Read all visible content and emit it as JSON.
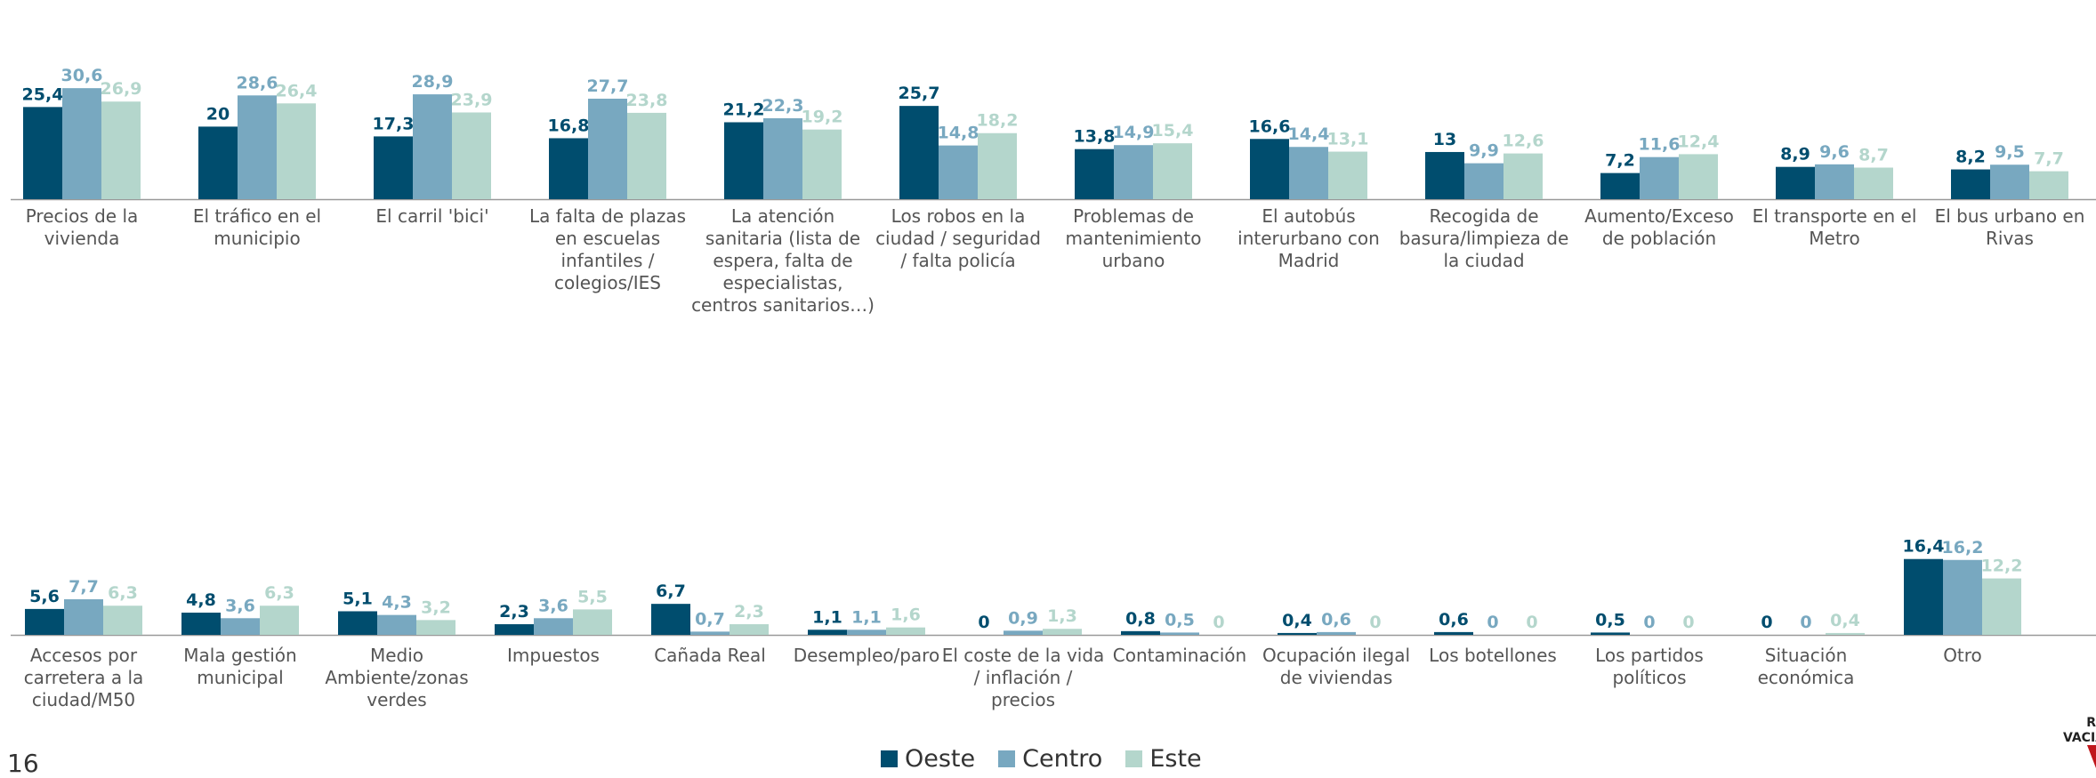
{
  "page_number": "16",
  "colors": {
    "Oeste": "#004d6e",
    "Centro": "#78a8c0",
    "Este": "#b4d6cc",
    "axis": "#999999",
    "label": "#555555"
  },
  "chart_data": [
    {
      "type": "bar",
      "categories": [
        "Precios de la vivienda",
        "El tráfico en el municipio",
        "El carril 'bici'",
        "La falta de plazas en escuelas infantiles / colegios/IES",
        "La atención sanitaria (lista de espera, falta de especialistas, centros sanitarios…)",
        "Los robos en la ciudad / seguridad / falta policía",
        "Problemas de mantenimiento urbano",
        "El autobús interurbano con Madrid",
        "Recogida de basura/limpieza de la ciudad",
        "Aumento/Exceso de población",
        "El transporte en el Metro",
        "El bus urbano en Rivas"
      ],
      "category_lines": [
        [
          "Precios de la",
          "vivienda"
        ],
        [
          "El tráfico en el",
          "municipio"
        ],
        [
          "El carril 'bici'"
        ],
        [
          "La falta de plazas",
          "en escuelas",
          "infantiles /",
          "colegios/IES"
        ],
        [
          "La atención",
          "sanitaria (lista de",
          "espera, falta de",
          "especialistas,",
          "centros sanitarios…)"
        ],
        [
          "Los robos en la",
          "ciudad / seguridad",
          "/ falta policía"
        ],
        [
          "Problemas de",
          "mantenimiento",
          "urbano"
        ],
        [
          "El autobús",
          "interurbano con",
          "Madrid"
        ],
        [
          "Recogida de",
          "basura/limpieza de",
          "la ciudad"
        ],
        [
          "Aumento/Exceso",
          "de población"
        ],
        [
          "El transporte en el",
          "Metro"
        ],
        [
          "El bus urbano en",
          "Rivas"
        ]
      ],
      "series": [
        {
          "name": "Oeste",
          "values": [
            25.4,
            20,
            17.3,
            16.8,
            21.2,
            25.7,
            13.8,
            16.6,
            13,
            7.2,
            8.9,
            8.2
          ],
          "labels": [
            "25,4",
            "20",
            "17,3",
            "16,8",
            "21,2",
            "25,7",
            "13,8",
            "16,6",
            "13",
            "7,2",
            "8,9",
            "8,2"
          ]
        },
        {
          "name": "Centro",
          "values": [
            30.6,
            28.6,
            28.9,
            27.7,
            22.3,
            14.8,
            14.9,
            14.4,
            9.9,
            11.6,
            9.6,
            9.5
          ],
          "labels": [
            "30,6",
            "28,6",
            "28,9",
            "27,7",
            "22,3",
            "14,8",
            "14,9",
            "14,4",
            "9,9",
            "11,6",
            "9,6",
            "9,5"
          ]
        },
        {
          "name": "Este",
          "values": [
            26.9,
            26.4,
            23.9,
            23.8,
            19.2,
            18.2,
            15.4,
            13.1,
            12.6,
            12.4,
            8.7,
            7.7
          ],
          "labels": [
            "26,9",
            "26,4",
            "23,9",
            "23,8",
            "19,2",
            "18,2",
            "15,4",
            "13,1",
            "12,6",
            "12,4",
            "8,7",
            "7,7"
          ]
        }
      ]
    },
    {
      "type": "bar",
      "categories": [
        "Accesos por carretera a la ciudad/M50",
        "Mala gestión municipal",
        "Medio Ambiente/zonas verdes",
        "Impuestos",
        "Cañada Real",
        "Desempleo/paro",
        "El coste de la vida / inflación / precios",
        "Contaminación",
        "Ocupación ilegal de viviendas",
        "Los botellones",
        "Los partidos políticos",
        "Situación económica",
        "Otro"
      ],
      "category_lines": [
        [
          "Accesos por",
          "carretera a la",
          "ciudad/M50"
        ],
        [
          "Mala gestión",
          "municipal"
        ],
        [
          "Medio",
          "Ambiente/zonas",
          "verdes"
        ],
        [
          "Impuestos"
        ],
        [
          "Cañada Real"
        ],
        [
          "Desempleo/paro"
        ],
        [
          "El coste de la vida",
          "/ inflación /",
          "precios"
        ],
        [
          "Contaminación"
        ],
        [
          "Ocupación ilegal",
          "de viviendas"
        ],
        [
          "Los botellones"
        ],
        [
          "Los partidos",
          "políticos"
        ],
        [
          "Situación",
          "económica"
        ],
        [
          "Otro"
        ]
      ],
      "series": [
        {
          "name": "Oeste",
          "values": [
            5.6,
            4.8,
            5.1,
            2.3,
            6.7,
            1.1,
            0,
            0.8,
            0.4,
            0.6,
            0.5,
            0,
            16.4
          ],
          "labels": [
            "5,6",
            "4,8",
            "5,1",
            "2,3",
            "6,7",
            "1,1",
            "0",
            "0,8",
            "0,4",
            "0,6",
            "0,5",
            "0",
            "16,4"
          ]
        },
        {
          "name": "Centro",
          "values": [
            7.7,
            3.6,
            4.3,
            3.6,
            0.7,
            1.1,
            0.9,
            0.5,
            0.6,
            0,
            0,
            0,
            16.2
          ],
          "labels": [
            "7,7",
            "3,6",
            "4,3",
            "3,6",
            "0,7",
            "1,1",
            "0,9",
            "0,5",
            "0,6",
            "0",
            "0",
            "0",
            "16,2"
          ]
        },
        {
          "name": "Este",
          "values": [
            6.3,
            6.3,
            3.2,
            5.5,
            2.3,
            1.6,
            1.3,
            0,
            0,
            0,
            0,
            0.4,
            12.2
          ],
          "labels": [
            "6,3",
            "6,3",
            "3,2",
            "5,5",
            "2,3",
            "1,6",
            "1,3",
            "0",
            "0",
            "0",
            "0",
            "0,4",
            "12,2"
          ]
        }
      ]
    }
  ],
  "legend": [
    {
      "name": "Oeste",
      "color": "#004d6e"
    },
    {
      "name": "Centro",
      "color": "#78a8c0"
    },
    {
      "name": "Este",
      "color": "#b4d6cc"
    }
  ],
  "logo": {
    "text_lines": [
      "R",
      "VACIA"
    ],
    "color": "#c0161b"
  }
}
